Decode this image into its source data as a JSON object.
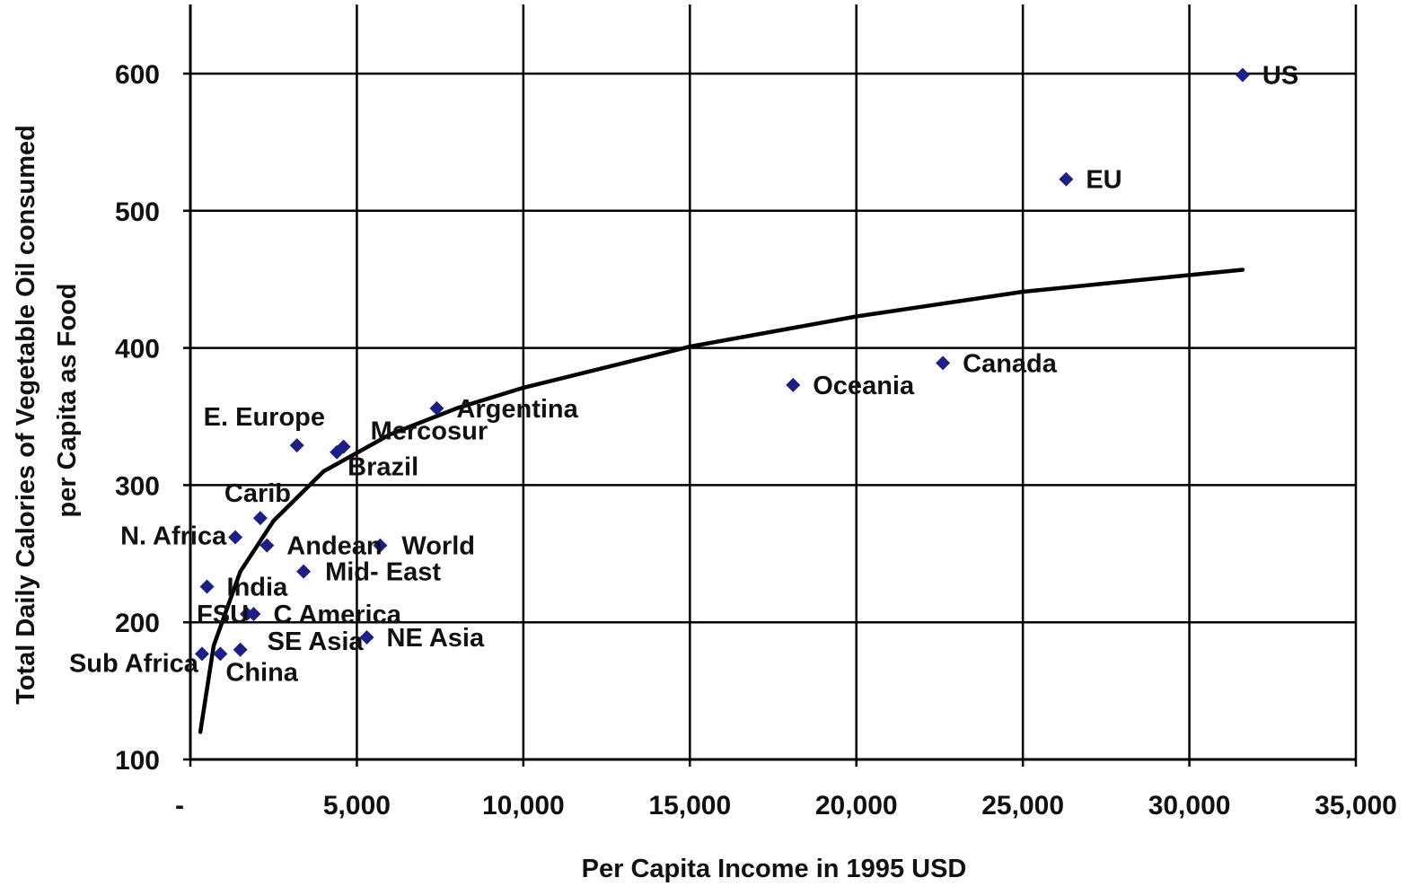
{
  "chart_data": {
    "type": "scatter",
    "title": "",
    "xlabel": "Per Capita Income in 1995 USD",
    "ylabel_lines": [
      "Total Daily Calories of Vegetable Oil  consumed",
      "per Capita as Food"
    ],
    "xlim": [
      0,
      35000
    ],
    "ylim": [
      100,
      650
    ],
    "x_ticks": [
      0,
      5000,
      10000,
      15000,
      20000,
      25000,
      30000,
      35000
    ],
    "x_tick_labels": [
      "-",
      "5,000",
      "10,000",
      "15,000",
      "20,000",
      "25,000",
      "30,000",
      "35,000"
    ],
    "y_ticks": [
      100,
      200,
      300,
      400,
      500,
      600
    ],
    "y_tick_labels": [
      "100",
      "200",
      "300",
      "400",
      "500",
      "600"
    ],
    "grid": true,
    "legend": "none",
    "marker": "diamond",
    "colors": {
      "marker": "#1a1f8a",
      "axis": "#000000",
      "grid": "#000000",
      "label": "#111111",
      "highlight_label": "#ff1a1a",
      "trend": "#000000"
    },
    "points": [
      {
        "label": "US",
        "x": 31600,
        "y": 599
      },
      {
        "label": "EU",
        "x": 26300,
        "y": 523
      },
      {
        "label": "Canada",
        "x": 22600,
        "y": 389
      },
      {
        "label": "Oceania",
        "x": 18100,
        "y": 373
      },
      {
        "label": "Argentina",
        "x": 7400,
        "y": 356
      },
      {
        "label": "E. Europe",
        "x": 3200,
        "y": 329
      },
      {
        "label": "Mercosur",
        "x": 4600,
        "y": 328
      },
      {
        "label": "Brazil",
        "x": 4400,
        "y": 324
      },
      {
        "label": "Carib",
        "x": 2100,
        "y": 276
      },
      {
        "label": "N. Africa",
        "x": 1350,
        "y": 262
      },
      {
        "label": "Andean",
        "x": 2300,
        "y": 256
      },
      {
        "label": "World",
        "x": 5700,
        "y": 256
      },
      {
        "label": "Mid- East",
        "x": 3400,
        "y": 237
      },
      {
        "label": "India",
        "x": 500,
        "y": 226
      },
      {
        "label": "FSU",
        "x": 1700,
        "y": 206
      },
      {
        "label": "C America",
        "x": 1900,
        "y": 206
      },
      {
        "label": "NE Asia",
        "x": 5300,
        "y": 189
      },
      {
        "label": "SE Asia",
        "x": 1500,
        "y": 180
      },
      {
        "label": "Sub Africa",
        "x": 350,
        "y": 177
      },
      {
        "label": "China",
        "x": 900,
        "y": 177,
        "highlight": true
      }
    ],
    "trendline": {
      "type": "logarithmic",
      "points": [
        {
          "x": 300,
          "y": 120
        },
        {
          "x": 700,
          "y": 183
        },
        {
          "x": 1500,
          "y": 237
        },
        {
          "x": 2500,
          "y": 274
        },
        {
          "x": 4000,
          "y": 310
        },
        {
          "x": 6000,
          "y": 337
        },
        {
          "x": 8000,
          "y": 356
        },
        {
          "x": 10000,
          "y": 371
        },
        {
          "x": 15000,
          "y": 401
        },
        {
          "x": 20000,
          "y": 423
        },
        {
          "x": 25000,
          "y": 441
        },
        {
          "x": 31600,
          "y": 457
        }
      ]
    }
  }
}
